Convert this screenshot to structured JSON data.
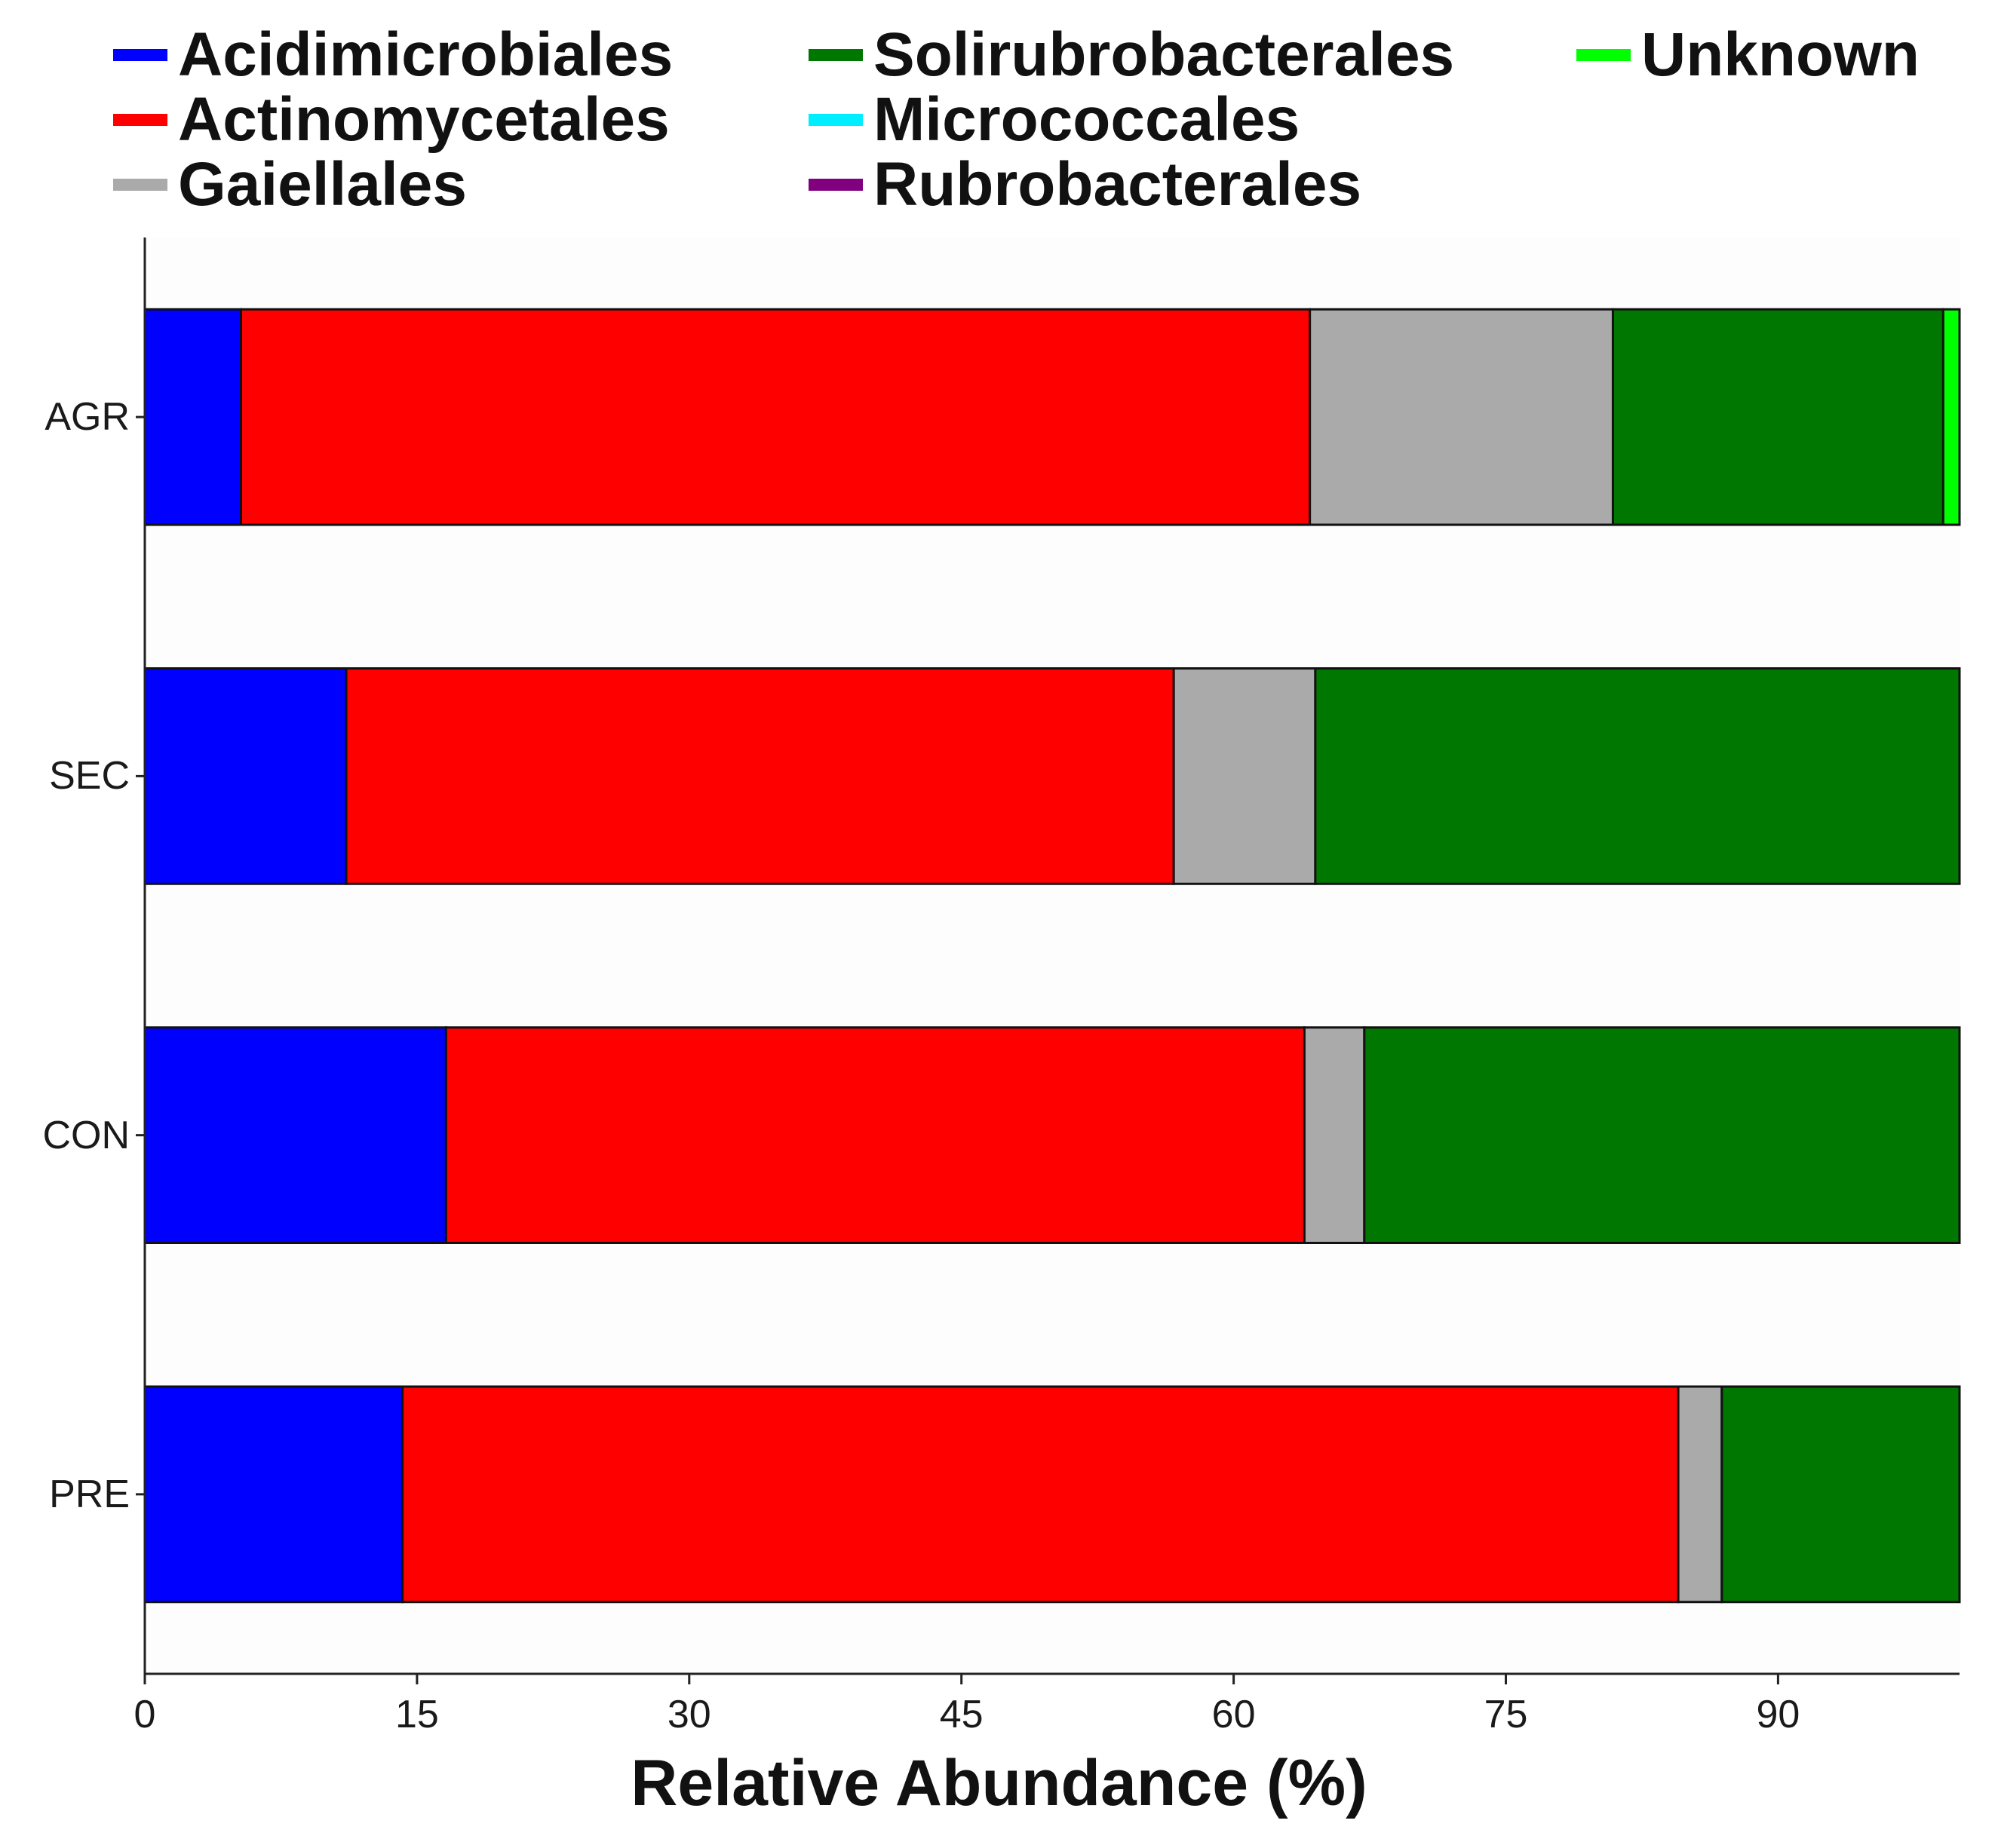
{
  "chart_data": {
    "type": "bar",
    "orientation": "horizontal",
    "stacked": true,
    "categories": [
      "AGR",
      "SEC",
      "CON",
      "PRE"
    ],
    "series": [
      {
        "name": "Acidimicrobiales",
        "color": "#0000ff",
        "values": [
          5.3,
          11.1,
          16.6,
          14.2
        ]
      },
      {
        "name": "Actinomycetales",
        "color": "#ff0000",
        "values": [
          58.9,
          45.6,
          47.3,
          70.3
        ]
      },
      {
        "name": "Gaiellales",
        "color": "#aaaaaa",
        "values": [
          16.7,
          7.8,
          3.3,
          2.4
        ]
      },
      {
        "name": "Solirubrobacterales",
        "color": "#007700",
        "values": [
          18.2,
          35.5,
          32.8,
          13.1
        ]
      },
      {
        "name": "Micrococcales",
        "color": "#00eeff",
        "values": [
          0,
          0,
          0,
          0
        ]
      },
      {
        "name": "Rubrobacterales",
        "color": "#800080",
        "values": [
          0,
          0,
          0,
          0
        ]
      },
      {
        "name": "Unknown",
        "color": "#00ff00",
        "values": [
          0.9,
          0,
          0,
          0
        ]
      }
    ],
    "legend_columns": [
      [
        "Acidimicrobiales",
        "Actinomycetales",
        "Gaiellales"
      ],
      [
        "Solirubrobacterales",
        "Micrococcales",
        "Rubrobacterales"
      ],
      [
        "Unknown"
      ]
    ],
    "x_ticks": [
      0,
      15,
      30,
      45,
      60,
      75,
      90
    ],
    "xlim": [
      0,
      100
    ],
    "xlabel": "Relative Abundance (%)",
    "ylabel": "",
    "title": "",
    "legend_position": "top",
    "grid": false
  }
}
